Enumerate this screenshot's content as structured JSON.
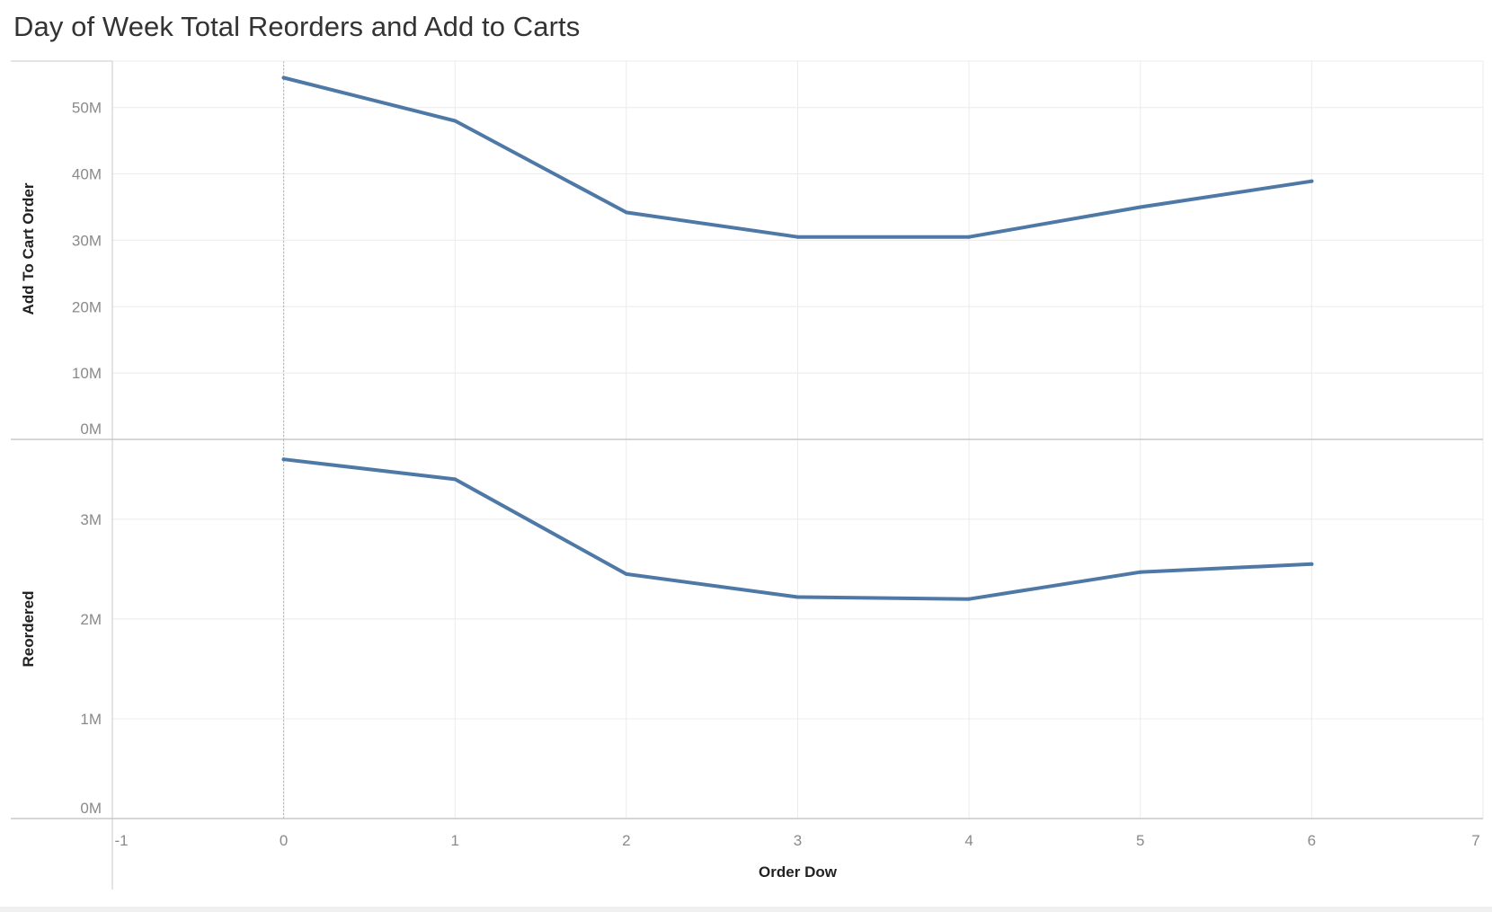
{
  "title": "Day of Week Total Reorders and Add to Carts",
  "colors": {
    "line": "#4e79a7",
    "grid": "#ebebeb",
    "axis": "#c8c8c8",
    "zero_line": "#b0b0b0",
    "tick_text": "#8a8a8a"
  },
  "chart_data": {
    "type": "line",
    "x_axis": {
      "label": "Order Dow",
      "range": [
        -1,
        7
      ],
      "ticks": [
        -1,
        0,
        1,
        2,
        3,
        4,
        5,
        6,
        7
      ],
      "tick_labels": [
        "-1",
        "0",
        "1",
        "2",
        "3",
        "4",
        "5",
        "6",
        "7"
      ]
    },
    "x": [
      0,
      1,
      2,
      3,
      4,
      5,
      6
    ],
    "panels": [
      {
        "ylabel": "Add To Cart Order",
        "yrange": [
          0,
          57
        ],
        "yticks": [
          0,
          10,
          20,
          30,
          40,
          50
        ],
        "ytick_labels": [
          "0M",
          "10M",
          "20M",
          "30M",
          "40M",
          "50M"
        ],
        "unit": "millions",
        "values": [
          54.5,
          48.0,
          34.2,
          30.5,
          30.5,
          35.0,
          38.9
        ]
      },
      {
        "ylabel": "Reordered",
        "yrange": [
          0,
          3.8
        ],
        "yticks": [
          0,
          1,
          2,
          3
        ],
        "ytick_labels": [
          "0M",
          "1M",
          "2M",
          "3M"
        ],
        "unit": "millions",
        "values": [
          3.6,
          3.4,
          2.45,
          2.22,
          2.2,
          2.47,
          2.55
        ]
      }
    ],
    "grid": true,
    "legend": "none"
  }
}
